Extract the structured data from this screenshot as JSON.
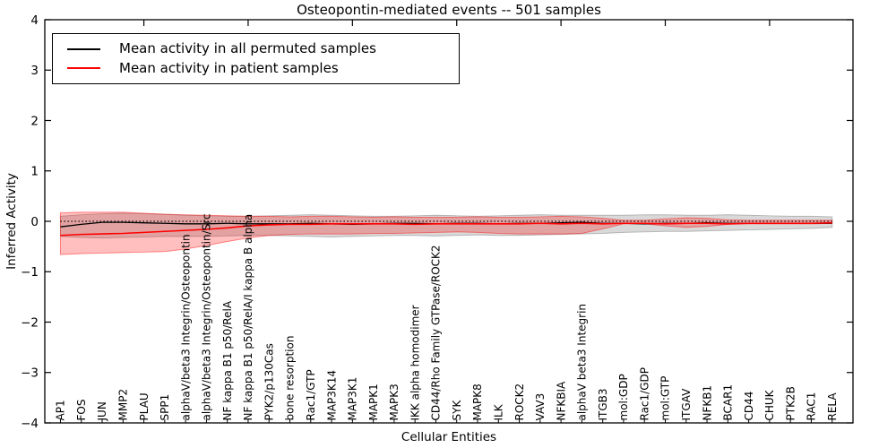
{
  "chart_data": {
    "type": "line",
    "title": "Osteopontin-mediated events -- 501 samples",
    "xlabel": "Cellular Entities",
    "ylabel": "Inferred Activity",
    "ylim": [
      -4,
      4
    ],
    "ytick_values": [
      -4,
      -3,
      -2,
      -1,
      0,
      1,
      2,
      3,
      4
    ],
    "ytick_labels": [
      "−4",
      "−3",
      "−2",
      "−1",
      "0",
      "1",
      "2",
      "3",
      "4"
    ],
    "grid": false,
    "legend": {
      "position": "upper-left",
      "entries": [
        {
          "label": "Mean activity in all permuted samples",
          "color": "#000000"
        },
        {
          "label": "Mean activity in patient samples",
          "color": "#ff0000"
        }
      ]
    },
    "categories": [
      "AP1",
      "FOS",
      "JUN",
      "MMP2",
      "PLAU",
      "SPP1",
      "alphaV/beta3 Integrin/Osteopontin",
      "alphaV/beta3 Integrin/Osteopontin/Src",
      "NF kappa B1 p50/RelA",
      "NF kappa B1 p50/RelA/I kappa B alpha",
      "PYK2/p130Cas",
      "bone resorption",
      "Rac1/GTP",
      "MAP3K14",
      "MAP3K1",
      "MAPK1",
      "MAPK3",
      "IKK alpha homodimer",
      "CD44/Rho Family GTPase/ROCK2",
      "SYK",
      "MAPK8",
      "ILK",
      "ROCK2",
      "VAV3",
      "NFKBIA",
      "alphaV beta3 Integrin",
      "ITGB3",
      "mol:GDP",
      "Rac1/GDP",
      "mol:GTP",
      "ITGAV",
      "NFKB1",
      "BCAR1",
      "CD44",
      "CHUK",
      "PTK2B",
      "RAC1",
      "RELA"
    ],
    "series": [
      {
        "name": "Mean activity in all permuted samples",
        "color": "#000000",
        "line_style": "solid",
        "values": [
          -0.11,
          -0.06,
          -0.02,
          -0.02,
          -0.03,
          -0.04,
          -0.05,
          -0.05,
          -0.04,
          -0.05,
          -0.05,
          -0.05,
          -0.04,
          -0.05,
          -0.06,
          -0.05,
          -0.04,
          -0.04,
          -0.05,
          -0.04,
          -0.04,
          -0.05,
          -0.04,
          -0.04,
          -0.03,
          -0.02,
          -0.04,
          -0.04,
          -0.05,
          -0.04,
          -0.04,
          -0.03,
          -0.04,
          -0.04,
          -0.04,
          -0.04,
          -0.04,
          -0.04
        ]
      },
      {
        "name": "Mean activity in patient samples",
        "color": "#ff0000",
        "line_style": "solid",
        "values": [
          -0.28,
          -0.26,
          -0.25,
          -0.24,
          -0.22,
          -0.2,
          -0.18,
          -0.16,
          -0.13,
          -0.09,
          -0.07,
          -0.06,
          -0.06,
          -0.05,
          -0.05,
          -0.05,
          -0.05,
          -0.06,
          -0.05,
          -0.05,
          -0.05,
          -0.05,
          -0.05,
          -0.04,
          -0.05,
          -0.04,
          -0.05,
          -0.04,
          -0.04,
          -0.05,
          -0.04,
          -0.04,
          -0.05,
          -0.04,
          -0.04,
          -0.04,
          -0.04,
          -0.03
        ]
      }
    ],
    "reference_line": {
      "value": 0,
      "color": "#000000",
      "line_style": "dotted"
    },
    "bands": [
      {
        "name": "permuted samples range",
        "color": "#808080",
        "fill_opacity": 0.3,
        "upper": [
          0.1,
          0.13,
          0.15,
          0.16,
          0.15,
          0.14,
          0.12,
          0.11,
          0.1,
          0.1,
          0.11,
          0.12,
          0.13,
          0.12,
          0.11,
          0.1,
          0.1,
          0.11,
          0.12,
          0.11,
          0.1,
          0.11,
          0.12,
          0.13,
          0.12,
          0.12,
          0.12,
          0.12,
          0.13,
          0.13,
          0.12,
          0.12,
          0.13,
          0.12,
          0.11,
          0.1,
          0.1,
          0.09
        ],
        "lower": [
          -0.3,
          -0.32,
          -0.33,
          -0.32,
          -0.31,
          -0.3,
          -0.3,
          -0.3,
          -0.29,
          -0.28,
          -0.28,
          -0.29,
          -0.3,
          -0.31,
          -0.3,
          -0.29,
          -0.28,
          -0.28,
          -0.29,
          -0.28,
          -0.27,
          -0.28,
          -0.28,
          -0.27,
          -0.26,
          -0.25,
          -0.24,
          -0.22,
          -0.21,
          -0.2,
          -0.2,
          -0.19,
          -0.18,
          -0.17,
          -0.16,
          -0.15,
          -0.14,
          -0.12
        ]
      },
      {
        "name": "patient samples range",
        "color": "#ff0000",
        "fill_opacity": 0.25,
        "upper": [
          0.17,
          0.18,
          0.18,
          0.18,
          0.16,
          0.14,
          0.13,
          0.12,
          0.11,
          0.1,
          0.1,
          0.09,
          0.1,
          0.1,
          0.09,
          0.08,
          0.09,
          0.08,
          0.08,
          0.08,
          0.09,
          0.08,
          0.08,
          0.09,
          0.1,
          0.09,
          0.06,
          0.02,
          0.02,
          0.05,
          0.07,
          0.06,
          0.03,
          0.02,
          0.02,
          0.02,
          0.02,
          0.02
        ],
        "lower": [
          -0.66,
          -0.64,
          -0.63,
          -0.62,
          -0.61,
          -0.6,
          -0.55,
          -0.48,
          -0.4,
          -0.33,
          -0.28,
          -0.26,
          -0.25,
          -0.25,
          -0.25,
          -0.24,
          -0.24,
          -0.23,
          -0.22,
          -0.21,
          -0.22,
          -0.24,
          -0.25,
          -0.25,
          -0.25,
          -0.24,
          -0.15,
          -0.05,
          -0.05,
          -0.09,
          -0.12,
          -0.1,
          -0.06,
          -0.05,
          -0.05,
          -0.05,
          -0.05,
          -0.04
        ]
      }
    ]
  }
}
